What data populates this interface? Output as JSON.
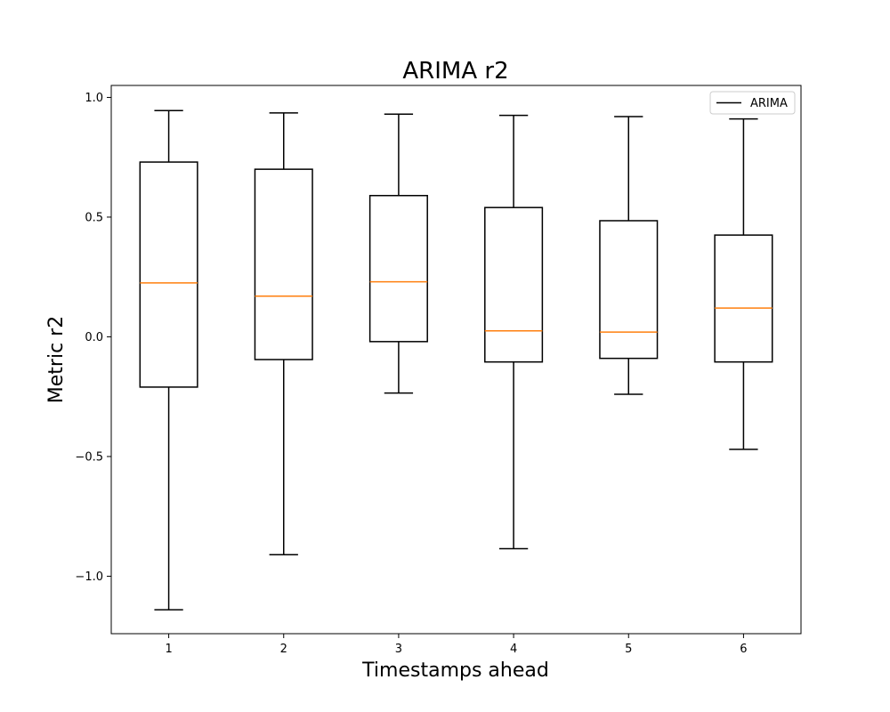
{
  "chart_data": {
    "type": "boxplot",
    "title": "ARIMA r2",
    "xlabel": "Timestamps ahead",
    "ylabel": "Metric r2",
    "categories": [
      "1",
      "2",
      "3",
      "4",
      "5",
      "6"
    ],
    "ylim": [
      -1.24,
      1.05
    ],
    "yticks": [
      1.0,
      0.5,
      0.0,
      -0.5,
      -1.0
    ],
    "ytick_labels": [
      "1.0",
      "0.5",
      "0.0",
      "−0.5",
      "−1.0"
    ],
    "boxes": [
      {
        "whisker_low": -1.14,
        "q1": -0.21,
        "median": 0.225,
        "q3": 0.73,
        "whisker_high": 0.945
      },
      {
        "whisker_low": -0.91,
        "q1": -0.095,
        "median": 0.17,
        "q3": 0.7,
        "whisker_high": 0.935
      },
      {
        "whisker_low": -0.235,
        "q1": -0.02,
        "median": 0.23,
        "q3": 0.59,
        "whisker_high": 0.93
      },
      {
        "whisker_low": -0.885,
        "q1": -0.105,
        "median": 0.025,
        "q3": 0.54,
        "whisker_high": 0.925
      },
      {
        "whisker_low": -0.24,
        "q1": -0.09,
        "median": 0.02,
        "q3": 0.485,
        "whisker_high": 0.92
      },
      {
        "whisker_low": -0.47,
        "q1": -0.105,
        "median": 0.12,
        "q3": 0.425,
        "whisker_high": 0.91
      }
    ],
    "legend": {
      "position": "top-right",
      "entries": [
        {
          "label": "ARIMA",
          "color": "#000000"
        }
      ]
    },
    "box_color": "#000000",
    "median_color": "#ff7f0e",
    "grid": false
  }
}
